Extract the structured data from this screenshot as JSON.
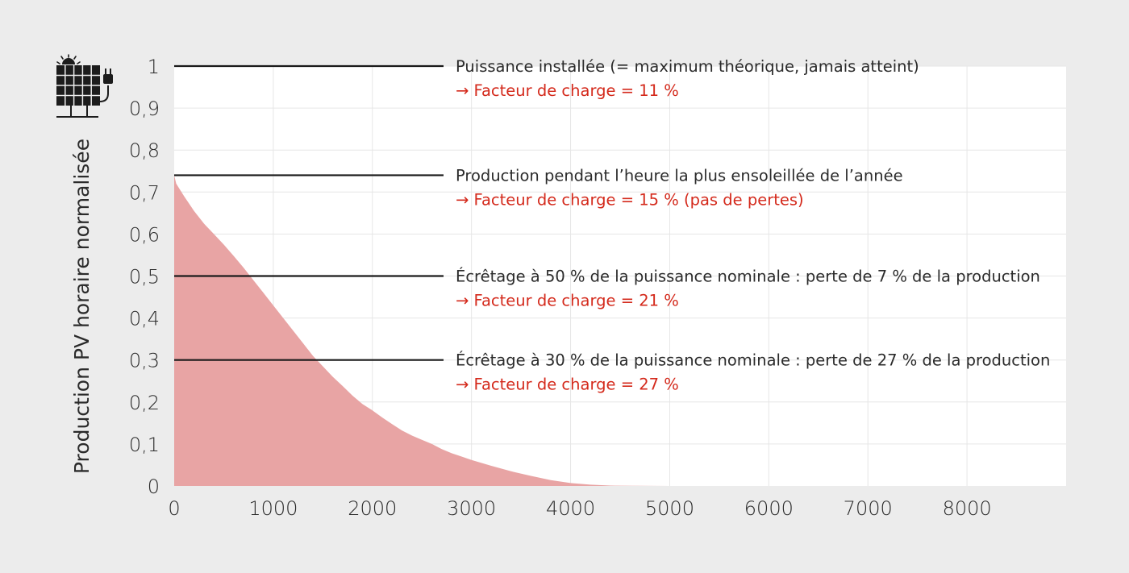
{
  "colors": {
    "background": "#ececec",
    "plot_background": "#ffffff",
    "area_fill": "#e8a4a4",
    "grid": "#e6e6e6",
    "reference_line": "#1a1a1a",
    "annotation_text": "#2b2b2b",
    "annotation_accent": "#d42a1c"
  },
  "icon": "solar-panel-plug-icon",
  "chart_data": {
    "type": "area",
    "title": "",
    "xlabel": "",
    "ylabel": "Production PV horaire normalisée",
    "xlim": [
      0,
      9000
    ],
    "ylim": [
      0,
      1
    ],
    "grid": true,
    "x_ticks": [
      {
        "value": 0,
        "label": "0"
      },
      {
        "value": 1000,
        "label": "1000"
      },
      {
        "value": 2000,
        "label": "2000"
      },
      {
        "value": 3000,
        "label": "3000"
      },
      {
        "value": 4000,
        "label": "4000"
      },
      {
        "value": 5000,
        "label": "5000"
      },
      {
        "value": 6000,
        "label": "6000"
      },
      {
        "value": 7000,
        "label": "7000"
      },
      {
        "value": 8000,
        "label": "8000"
      }
    ],
    "y_ticks": [
      {
        "value": 0,
        "label": "0"
      },
      {
        "value": 0.1,
        "label": "0,1"
      },
      {
        "value": 0.2,
        "label": "0,2"
      },
      {
        "value": 0.3,
        "label": "0,3"
      },
      {
        "value": 0.4,
        "label": "0,4"
      },
      {
        "value": 0.5,
        "label": "0,5"
      },
      {
        "value": 0.6,
        "label": "0,6"
      },
      {
        "value": 0.7,
        "label": "0,7"
      },
      {
        "value": 0.8,
        "label": "0,8"
      },
      {
        "value": 0.9,
        "label": "0,9"
      },
      {
        "value": 1,
        "label": "1"
      }
    ],
    "series": [
      {
        "x": [
          0,
          20,
          100,
          200,
          300,
          400,
          500,
          600,
          700,
          800,
          900,
          1000,
          1100,
          1200,
          1300,
          1400,
          1500,
          1600,
          1700,
          1800,
          1900,
          2000,
          2100,
          2200,
          2300,
          2400,
          2500,
          2600,
          2700,
          2800,
          2900,
          3000,
          3200,
          3400,
          3600,
          3800,
          4000,
          4200,
          4400,
          4600,
          4800,
          5000,
          8760
        ],
        "y": [
          0.74,
          0.72,
          0.69,
          0.655,
          0.625,
          0.6,
          0.575,
          0.548,
          0.52,
          0.49,
          0.46,
          0.43,
          0.4,
          0.37,
          0.34,
          0.31,
          0.285,
          0.26,
          0.238,
          0.215,
          0.195,
          0.18,
          0.163,
          0.147,
          0.132,
          0.12,
          0.11,
          0.1,
          0.088,
          0.078,
          0.07,
          0.062,
          0.048,
          0.035,
          0.024,
          0.014,
          0.007,
          0.003,
          0.001,
          0.0003,
          0.0001,
          0,
          0
        ]
      }
    ],
    "reference_lines": [
      {
        "y": 1,
        "label": "Puissance installée (= maximum théorique, jamais atteint)",
        "sublabel": "→ Facteur de charge = 11 %"
      },
      {
        "y": 0.74,
        "label": "Production pendant l’heure la plus ensoleillée de l’année",
        "sublabel": "→ Facteur de charge = 15 % (pas de pertes)"
      },
      {
        "y": 0.5,
        "label": "Écrêtage à 50 % de la puissance nominale : perte de 7 % de la production",
        "sublabel": "→ Facteur de charge = 21 %"
      },
      {
        "y": 0.3,
        "label": "Écrêtage à 30 % de la puissance nominale : perte de 27 % de la production",
        "sublabel": "→ Facteur de charge = 27 %"
      }
    ]
  }
}
